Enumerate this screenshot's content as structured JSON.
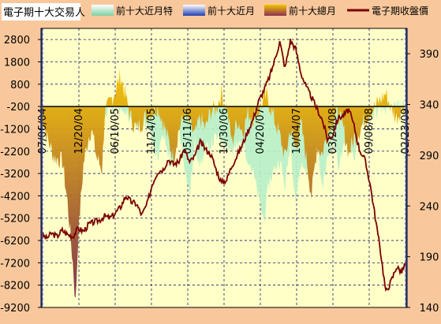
{
  "colors": {
    "background": "#F8C89C",
    "plot_bg": "#FFFFC8",
    "grid": "#1A1A66",
    "close_line": "#7A0000",
    "bars_top": "#F5C400",
    "bars_bottom": "#7A2A4A",
    "special_area": "#B8F0C8",
    "recent_line": "#3050C0"
  },
  "legend": {
    "title": "電子期十大交易人",
    "items": [
      {
        "label": "前十大近月特",
        "icon": "mint-gradient-swatch"
      },
      {
        "label": "前十大近月",
        "icon": "blue-gradient-swatch"
      },
      {
        "label": "前十大總月",
        "icon": "gold-gradient-swatch"
      },
      {
        "label": "電子期收盤價",
        "icon": "maroon-line-swatch"
      }
    ]
  },
  "chart_data": {
    "type": "area",
    "title": "電子期十大交易人",
    "left_axis": {
      "ticks": [
        2800,
        1800,
        800,
        -200,
        -1200,
        -2200,
        -3200,
        -4200,
        -5200,
        -6200,
        -7200,
        -8200,
        -9200
      ],
      "range": [
        -9200,
        3300
      ]
    },
    "right_axis": {
      "ticks": [
        390,
        340,
        290,
        240,
        190,
        140
      ],
      "range": [
        140,
        415
      ]
    },
    "x_tick_labels": [
      "07/06/04",
      "12/20/04",
      "06/10/05",
      "11/24/05",
      "05/11/06",
      "10/30/06",
      "04/20/07",
      "10/04/07",
      "03/24/08",
      "09/08/08",
      "02/23/09"
    ],
    "series": [
      {
        "name": "前十大總月",
        "keypoints": [
          [
            0,
            -300
          ],
          [
            2,
            -1500
          ],
          [
            5,
            -2500
          ],
          [
            8,
            -2600
          ],
          [
            10,
            -4500
          ],
          [
            12,
            -7200
          ],
          [
            13,
            -9000
          ],
          [
            14,
            -6000
          ],
          [
            16,
            -2800
          ],
          [
            18,
            -1500
          ],
          [
            19,
            -1200
          ],
          [
            21,
            -2500
          ],
          [
            23,
            -3000
          ],
          [
            24,
            -600
          ],
          [
            26,
            0
          ],
          [
            28,
            500
          ],
          [
            30,
            1200
          ],
          [
            32,
            200
          ],
          [
            34,
            -800
          ],
          [
            36,
            -1200
          ],
          [
            40,
            -600
          ],
          [
            44,
            -200
          ],
          [
            46,
            -900
          ],
          [
            50,
            -2500
          ],
          [
            52,
            -1200
          ],
          [
            54,
            -600
          ],
          [
            56,
            -1000
          ],
          [
            58,
            -1500
          ],
          [
            60,
            -700
          ],
          [
            62,
            -1200
          ],
          [
            64,
            -400
          ],
          [
            66,
            -300
          ],
          [
            68,
            400
          ],
          [
            70,
            -300
          ],
          [
            72,
            -1800
          ],
          [
            74,
            -800
          ],
          [
            76,
            -1300
          ],
          [
            78,
            -500
          ],
          [
            80,
            -700
          ],
          [
            82,
            -400
          ],
          [
            85,
            300
          ],
          [
            88,
            -800
          ],
          [
            90,
            -1500
          ],
          [
            92,
            -2500
          ],
          [
            94,
            -1200
          ],
          [
            96,
            -2100
          ],
          [
            98,
            -1000
          ],
          [
            100,
            -2500
          ],
          [
            102,
            -4200
          ],
          [
            104,
            -2000
          ],
          [
            106,
            -2300
          ],
          [
            108,
            -1400
          ],
          [
            110,
            -800
          ],
          [
            112,
            -500
          ],
          [
            114,
            -1200
          ],
          [
            116,
            -2300
          ],
          [
            118,
            -1600
          ],
          [
            120,
            -1300
          ],
          [
            122,
            -800
          ],
          [
            124,
            -400
          ],
          [
            126,
            -200
          ],
          [
            128,
            100
          ],
          [
            130,
            400
          ],
          [
            132,
            -300
          ],
          [
            134,
            -700
          ],
          [
            136,
            -300
          ],
          [
            138,
            0
          ]
        ]
      },
      {
        "name": "前十大近月特",
        "keypoints": [
          [
            0,
            -200
          ],
          [
            4,
            -600
          ],
          [
            8,
            -400
          ],
          [
            12,
            -800
          ],
          [
            16,
            -500
          ],
          [
            20,
            -700
          ],
          [
            24,
            -400
          ],
          [
            28,
            -200
          ],
          [
            32,
            -600
          ],
          [
            36,
            -900
          ],
          [
            40,
            -1000
          ],
          [
            44,
            -2400
          ],
          [
            46,
            -1500
          ],
          [
            48,
            -2300
          ],
          [
            50,
            -3000
          ],
          [
            52,
            -1200
          ],
          [
            56,
            -4200
          ],
          [
            58,
            -1800
          ],
          [
            60,
            -2800
          ],
          [
            62,
            -2200
          ],
          [
            66,
            -1600
          ],
          [
            70,
            -1800
          ],
          [
            72,
            -2200
          ],
          [
            76,
            -1800
          ],
          [
            80,
            -3200
          ],
          [
            82,
            -4300
          ],
          [
            84,
            -5300
          ],
          [
            86,
            -3600
          ],
          [
            88,
            -3000
          ],
          [
            90,
            -2600
          ],
          [
            92,
            -3800
          ],
          [
            94,
            -1800
          ],
          [
            96,
            -4400
          ],
          [
            98,
            -2800
          ],
          [
            100,
            -3000
          ],
          [
            102,
            -2600
          ],
          [
            104,
            -1800
          ],
          [
            106,
            -3800
          ],
          [
            108,
            -2600
          ],
          [
            110,
            -1500
          ],
          [
            112,
            -2800
          ],
          [
            114,
            -2200
          ],
          [
            116,
            -1500
          ],
          [
            118,
            -2600
          ],
          [
            120,
            -1200
          ],
          [
            122,
            -800
          ],
          [
            126,
            -500
          ],
          [
            130,
            -300
          ],
          [
            134,
            -200
          ],
          [
            138,
            -100
          ]
        ]
      },
      {
        "name": "電子期收盤價",
        "axis": "right",
        "keypoints": [
          [
            0,
            213
          ],
          [
            2,
            208
          ],
          [
            4,
            213
          ],
          [
            6,
            210
          ],
          [
            8,
            216
          ],
          [
            10,
            212
          ],
          [
            12,
            210
          ],
          [
            14,
            218
          ],
          [
            16,
            215
          ],
          [
            18,
            222
          ],
          [
            20,
            224
          ],
          [
            22,
            226
          ],
          [
            24,
            230
          ],
          [
            26,
            228
          ],
          [
            28,
            233
          ],
          [
            30,
            239
          ],
          [
            32,
            250
          ],
          [
            34,
            244
          ],
          [
            36,
            242
          ],
          [
            38,
            231
          ],
          [
            40,
            242
          ],
          [
            42,
            262
          ],
          [
            44,
            274
          ],
          [
            46,
            276
          ],
          [
            48,
            286
          ],
          [
            50,
            281
          ],
          [
            52,
            284
          ],
          [
            54,
            296
          ],
          [
            56,
            283
          ],
          [
            58,
            289
          ],
          [
            60,
            303
          ],
          [
            62,
            296
          ],
          [
            64,
            291
          ],
          [
            66,
            276
          ],
          [
            68,
            263
          ],
          [
            70,
            266
          ],
          [
            72,
            280
          ],
          [
            74,
            290
          ],
          [
            76,
            301
          ],
          [
            78,
            314
          ],
          [
            80,
            326
          ],
          [
            82,
            343
          ],
          [
            84,
            354
          ],
          [
            86,
            366
          ],
          [
            88,
            383
          ],
          [
            90,
            402
          ],
          [
            92,
            376
          ],
          [
            94,
            403
          ],
          [
            96,
            395
          ],
          [
            98,
            371
          ],
          [
            100,
            357
          ],
          [
            102,
            347
          ],
          [
            104,
            336
          ],
          [
            106,
            325
          ],
          [
            108,
            306
          ],
          [
            110,
            310
          ],
          [
            112,
            327
          ],
          [
            114,
            329
          ],
          [
            116,
            335
          ],
          [
            118,
            319
          ],
          [
            120,
            296
          ],
          [
            122,
            286
          ],
          [
            124,
            263
          ],
          [
            126,
            229
          ],
          [
            128,
            195
          ],
          [
            130,
            155
          ],
          [
            132,
            166
          ],
          [
            134,
            180
          ],
          [
            136,
            175
          ],
          [
            138,
            187
          ]
        ]
      }
    ],
    "grid": true,
    "zero_line": -200
  }
}
